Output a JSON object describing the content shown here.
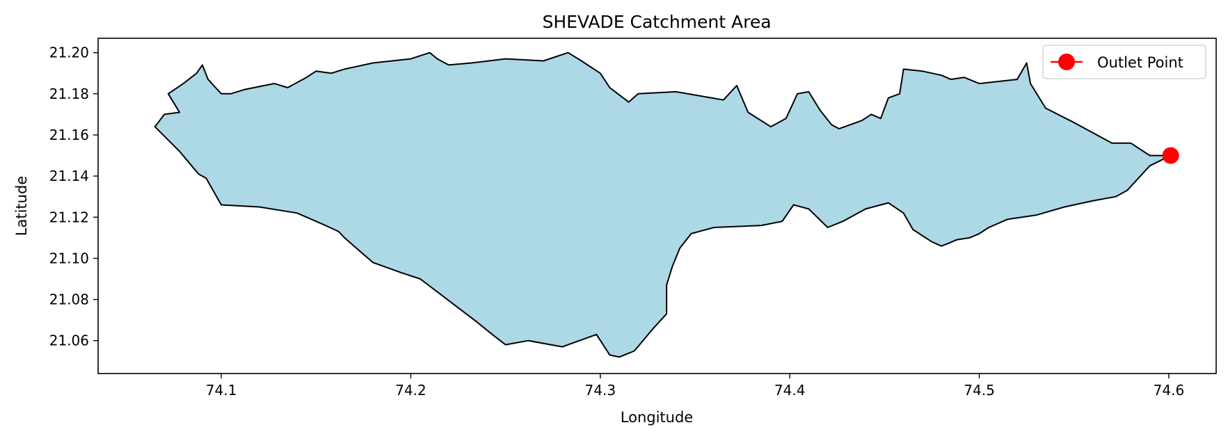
{
  "chart_data": {
    "type": "map",
    "title": "SHEVADE Catchment Area",
    "xlabel": "Longitude",
    "ylabel": "Latitude",
    "xlim": [
      74.035,
      74.625
    ],
    "ylim": [
      21.044,
      21.207
    ],
    "xticks": [
      "74.1",
      "74.2",
      "74.3",
      "74.4",
      "74.5",
      "74.6"
    ],
    "yticks": [
      "21.06",
      "21.08",
      "21.10",
      "21.12",
      "21.14",
      "21.16",
      "21.18",
      "21.20"
    ],
    "fill_color": "#add8e6",
    "edge_color": "#000000",
    "grid": false,
    "legend": {
      "position": "top-right",
      "entries": [
        "Outlet Point"
      ]
    },
    "outlet": {
      "name": "Outlet Point",
      "x": 74.601,
      "y": 21.15,
      "color": "#ff0000"
    },
    "boundary": {
      "lon": [
        74.065,
        74.07,
        74.078,
        74.072,
        74.08,
        74.087,
        74.09,
        74.093,
        74.1,
        74.105,
        74.112,
        74.128,
        74.135,
        74.145,
        74.15,
        74.158,
        74.165,
        74.18,
        74.2,
        74.21,
        74.214,
        74.22,
        74.232,
        74.25,
        74.27,
        74.283,
        74.29,
        74.3,
        74.305,
        74.315,
        74.32,
        74.34,
        74.365,
        74.372,
        74.378,
        74.39,
        74.398,
        74.404,
        74.41,
        74.416,
        74.422,
        74.426,
        74.432,
        74.438,
        74.443,
        74.448,
        74.452,
        74.458,
        74.46,
        74.47,
        74.48,
        74.485,
        74.492,
        74.5,
        74.51,
        74.52,
        74.525,
        74.527,
        74.535,
        74.55,
        74.57,
        74.58,
        74.59,
        74.601,
        74.59,
        74.578,
        74.572,
        74.56,
        74.545,
        74.53,
        74.515,
        74.505,
        74.5,
        74.495,
        74.488,
        74.483,
        74.48,
        74.475,
        74.465,
        74.46,
        74.452,
        74.44,
        74.428,
        74.42,
        74.41,
        74.402,
        74.396,
        74.385,
        74.36,
        74.348,
        74.342,
        74.338,
        74.335,
        74.335,
        74.328,
        74.318,
        74.31,
        74.305,
        74.298,
        74.28,
        74.262,
        74.25,
        74.243,
        74.235,
        74.225,
        74.215,
        74.205,
        74.195,
        74.18,
        74.165,
        74.162,
        74.155,
        74.14,
        74.12,
        74.1,
        74.092,
        74.088,
        74.078,
        74.065
      ],
      "lat": [
        21.164,
        21.17,
        21.171,
        21.18,
        21.185,
        21.19,
        21.194,
        21.187,
        21.18,
        21.18,
        21.182,
        21.185,
        21.183,
        21.188,
        21.191,
        21.19,
        21.192,
        21.195,
        21.197,
        21.2,
        21.197,
        21.194,
        21.195,
        21.197,
        21.196,
        21.2,
        21.196,
        21.19,
        21.183,
        21.176,
        21.18,
        21.181,
        21.177,
        21.184,
        21.171,
        21.164,
        21.168,
        21.18,
        21.181,
        21.172,
        21.165,
        21.163,
        21.165,
        21.167,
        21.17,
        21.168,
        21.178,
        21.18,
        21.192,
        21.191,
        21.189,
        21.187,
        21.188,
        21.185,
        21.186,
        21.187,
        21.195,
        21.185,
        21.173,
        21.166,
        21.156,
        21.156,
        21.15,
        21.15,
        21.145,
        21.133,
        21.13,
        21.128,
        21.125,
        21.121,
        21.119,
        21.115,
        21.112,
        21.11,
        21.109,
        21.107,
        21.106,
        21.108,
        21.114,
        21.122,
        21.127,
        21.124,
        21.118,
        21.115,
        21.124,
        21.126,
        21.118,
        21.116,
        21.115,
        21.112,
        21.105,
        21.096,
        21.087,
        21.073,
        21.066,
        21.055,
        21.052,
        21.053,
        21.063,
        21.057,
        21.06,
        21.058,
        21.063,
        21.069,
        21.076,
        21.083,
        21.09,
        21.093,
        21.098,
        21.11,
        21.113,
        21.116,
        21.122,
        21.125,
        21.126,
        21.139,
        21.141,
        21.152,
        21.164
      ]
    }
  }
}
